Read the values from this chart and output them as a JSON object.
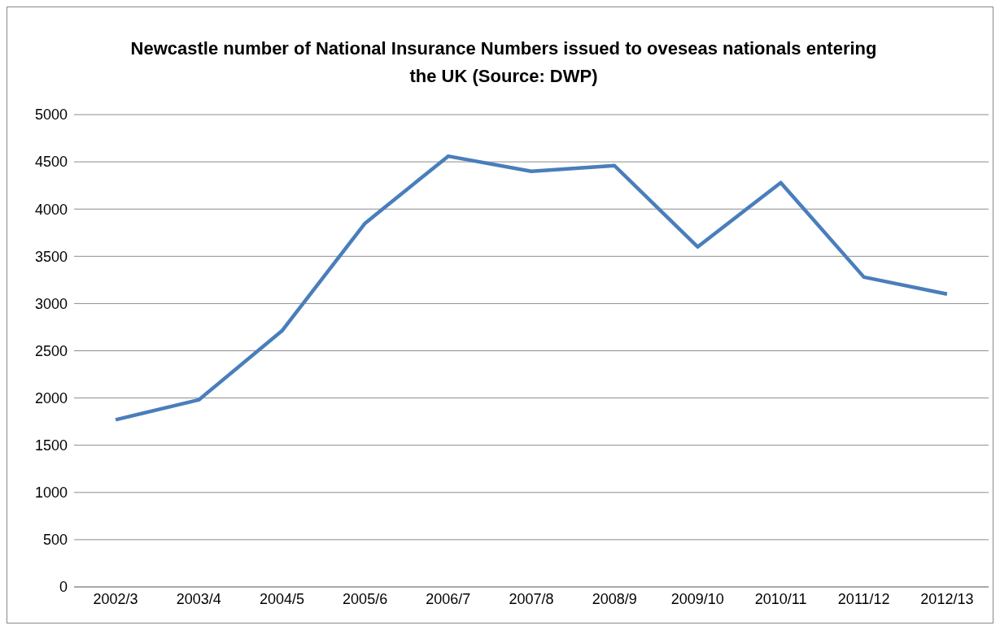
{
  "chart_data": {
    "type": "line",
    "title": "Newcastle number of National Insurance Numbers issued to oveseas nationals entering the UK  (Source: DWP)",
    "categories": [
      "2002/3",
      "2003/4",
      "2004/5",
      "2005/6",
      "2006/7",
      "2007/8",
      "2008/9",
      "2009/10",
      "2010/11",
      "2011/12",
      "2012/13"
    ],
    "series": [
      {
        "color": "#4a7ebb",
        "values": [
          1770,
          1980,
          2710,
          3850,
          4560,
          4400,
          4460,
          3600,
          4280,
          3280,
          3100
        ]
      }
    ],
    "ylim": [
      0,
      5000
    ],
    "yticks": [
      0,
      500,
      1000,
      1500,
      2000,
      2500,
      3000,
      3500,
      4000,
      4500,
      5000
    ],
    "grid": "y",
    "legend": false,
    "marker": "none",
    "line_style": "solid"
  }
}
